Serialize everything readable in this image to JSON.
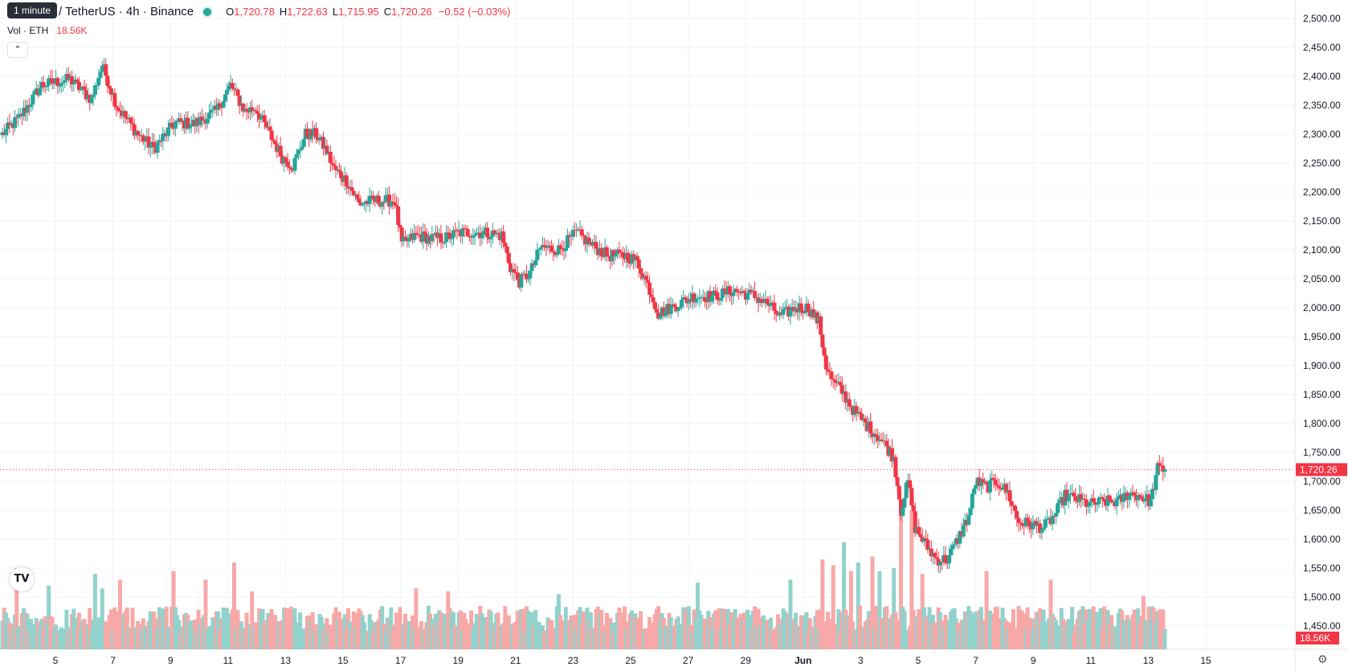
{
  "tooltip": "1 minute",
  "symbol": {
    "title": "um / TetherUS · 4h · Binance"
  },
  "ohlc": {
    "o_label": "O",
    "o": "1,720.78",
    "h_label": "H",
    "h": "1,722.63",
    "l_label": "L",
    "l": "1,715.95",
    "c_label": "C",
    "c": "1,720.26",
    "change": "−0.52 (−0.03%)"
  },
  "volume_legend": {
    "label": "Vol · ETH",
    "value": "18.56K"
  },
  "colors": {
    "up": "#26a69a",
    "down": "#f23645",
    "vol_up": "#92d2cc",
    "vol_down": "#f7a8a7",
    "grid": "#f0f3fa",
    "axis_text": "#131722"
  },
  "icons": {
    "collapse": "chevron-up-icon",
    "logo": "tradingview-logo",
    "settings": "gear-icon"
  },
  "chart_data": {
    "type": "candlestick",
    "price_axis": {
      "ticks": [
        "2,500.00",
        "2,450.00",
        "2,400.00",
        "2,350.00",
        "2,300.00",
        "2,250.00",
        "2,200.00",
        "2,150.00",
        "2,100.00",
        "2,050.00",
        "2,000.00",
        "1,950.00",
        "1,900.00",
        "1,850.00",
        "1,800.00",
        "1,750.00",
        "1,700.00",
        "1,650.00",
        "1,600.00",
        "1,550.00",
        "1,500.00",
        "1,450.00"
      ],
      "range": [
        1430,
        2518
      ]
    },
    "time_axis": {
      "ticks": [
        "5",
        "7",
        "9",
        "11",
        "13",
        "15",
        "17",
        "19",
        "21",
        "23",
        "25",
        "27",
        "29",
        "Jun",
        "3",
        "5",
        "7",
        "9",
        "11",
        "13",
        "15"
      ]
    },
    "last_price": {
      "value": 1720.26,
      "label": "1,720.26"
    },
    "last_volume": {
      "label": "18.56K"
    },
    "keypoints": [
      [
        0,
        2300
      ],
      [
        10,
        2330
      ],
      [
        22,
        2385
      ],
      [
        38,
        2395
      ],
      [
        50,
        2360
      ],
      [
        56,
        2420
      ],
      [
        64,
        2350
      ],
      [
        76,
        2300
      ],
      [
        85,
        2275
      ],
      [
        97,
        2320
      ],
      [
        108,
        2318
      ],
      [
        120,
        2340
      ],
      [
        128,
        2385
      ],
      [
        136,
        2340
      ],
      [
        142,
        2345
      ],
      [
        150,
        2300
      ],
      [
        157,
        2260
      ],
      [
        163,
        2245
      ],
      [
        170,
        2300
      ],
      [
        176,
        2300
      ],
      [
        182,
        2270
      ],
      [
        186,
        2240
      ],
      [
        193,
        2220
      ],
      [
        200,
        2180
      ],
      [
        208,
        2185
      ],
      [
        220,
        2185
      ],
      [
        224,
        2110
      ],
      [
        232,
        2125
      ],
      [
        240,
        2120
      ],
      [
        248,
        2120
      ],
      [
        256,
        2130
      ],
      [
        270,
        2130
      ],
      [
        280,
        2125
      ],
      [
        285,
        2070
      ],
      [
        290,
        2045
      ],
      [
        296,
        2060
      ],
      [
        302,
        2105
      ],
      [
        312,
        2100
      ],
      [
        322,
        2130
      ],
      [
        332,
        2105
      ],
      [
        340,
        2090
      ],
      [
        350,
        2090
      ],
      [
        356,
        2080
      ],
      [
        362,
        2040
      ],
      [
        368,
        1990
      ],
      [
        378,
        2005
      ],
      [
        388,
        2020
      ],
      [
        400,
        2020
      ],
      [
        410,
        2030
      ],
      [
        422,
        2020
      ],
      [
        430,
        2005
      ],
      [
        436,
        1985
      ],
      [
        445,
        2000
      ],
      [
        452,
        2000
      ],
      [
        458,
        1975
      ],
      [
        462,
        1900
      ],
      [
        466,
        1870
      ],
      [
        470,
        1860
      ],
      [
        478,
        1820
      ],
      [
        484,
        1800
      ],
      [
        492,
        1775
      ],
      [
        496,
        1760
      ],
      [
        500,
        1740
      ],
      [
        504,
        1650
      ],
      [
        508,
        1700
      ],
      [
        512,
        1620
      ],
      [
        518,
        1590
      ],
      [
        524,
        1565
      ],
      [
        530,
        1565
      ],
      [
        536,
        1600
      ],
      [
        542,
        1640
      ],
      [
        546,
        1700
      ],
      [
        552,
        1690
      ],
      [
        558,
        1700
      ],
      [
        564,
        1680
      ],
      [
        570,
        1630
      ],
      [
        578,
        1625
      ],
      [
        584,
        1620
      ],
      [
        590,
        1640
      ],
      [
        596,
        1675
      ],
      [
        602,
        1670
      ],
      [
        610,
        1660
      ],
      [
        618,
        1665
      ],
      [
        626,
        1665
      ],
      [
        632,
        1680
      ],
      [
        638,
        1675
      ],
      [
        644,
        1665
      ],
      [
        648,
        1722
      ],
      [
        652,
        1720
      ]
    ],
    "volume_spikes": [
      [
        8,
        1550
      ],
      [
        26,
        1520
      ],
      [
        52,
        1540
      ],
      [
        56,
        1515
      ],
      [
        66,
        1530
      ],
      [
        96,
        1545
      ],
      [
        114,
        1530
      ],
      [
        130,
        1560
      ],
      [
        140,
        1510
      ],
      [
        232,
        1515
      ],
      [
        250,
        1510
      ],
      [
        312,
        1505
      ],
      [
        390,
        1525
      ],
      [
        442,
        1530
      ],
      [
        460,
        1565
      ],
      [
        466,
        1555
      ],
      [
        472,
        1595
      ],
      [
        476,
        1545
      ],
      [
        480,
        1560
      ],
      [
        488,
        1570
      ],
      [
        492,
        1545
      ],
      [
        500,
        1550
      ],
      [
        504,
        1640
      ],
      [
        510,
        1650
      ],
      [
        516,
        1540
      ],
      [
        552,
        1545
      ],
      [
        588,
        1530
      ],
      [
        640,
        1502
      ]
    ]
  }
}
